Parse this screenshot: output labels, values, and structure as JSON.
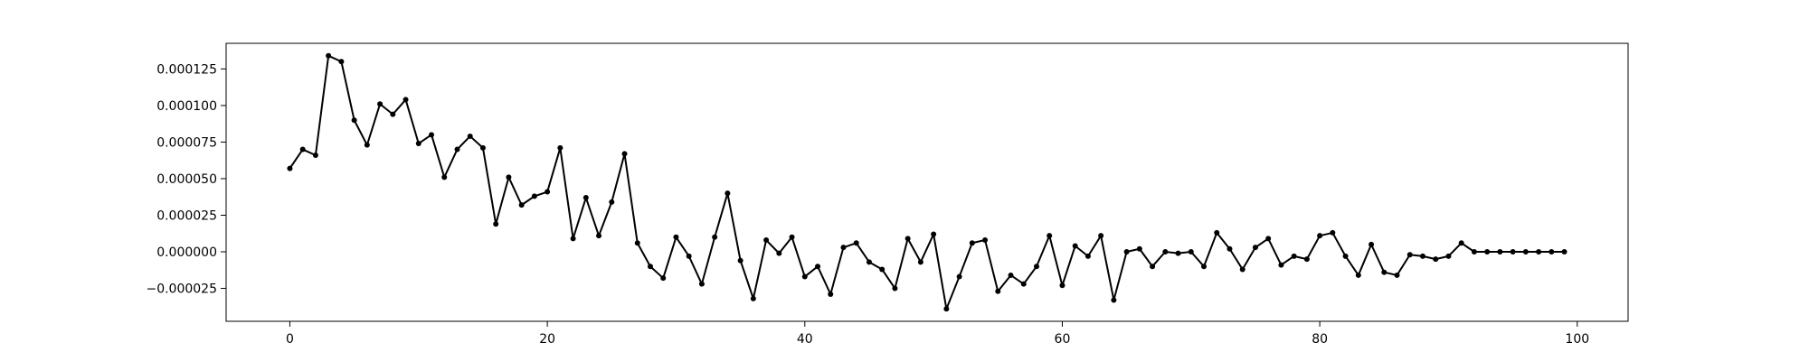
{
  "chart_data": {
    "type": "line",
    "title": "",
    "xlabel": "",
    "ylabel": "",
    "xlim": [
      -4.95,
      103.95
    ],
    "ylim": [
      -4.75e-05,
      0.0001425
    ],
    "xticks": [
      {
        "value": 0,
        "label": "0"
      },
      {
        "value": 20,
        "label": "20"
      },
      {
        "value": 40,
        "label": "40"
      },
      {
        "value": 60,
        "label": "60"
      },
      {
        "value": 80,
        "label": "80"
      },
      {
        "value": 100,
        "label": "100"
      }
    ],
    "yticks": [
      {
        "value": -2.5e-05,
        "label": "−0.000025"
      },
      {
        "value": 0,
        "label": "0.000000"
      },
      {
        "value": 2.5e-05,
        "label": "0.000025"
      },
      {
        "value": 5e-05,
        "label": "0.000050"
      },
      {
        "value": 7.5e-05,
        "label": "0.000075"
      },
      {
        "value": 0.0001,
        "label": "0.000100"
      },
      {
        "value": 0.000125,
        "label": "0.000125"
      }
    ],
    "grid": false,
    "color": "#000000",
    "marker": "dot",
    "x": [
      0,
      1,
      2,
      3,
      4,
      5,
      6,
      7,
      8,
      9,
      10,
      11,
      12,
      13,
      14,
      15,
      16,
      17,
      18,
      19,
      20,
      21,
      22,
      23,
      24,
      25,
      26,
      27,
      28,
      29,
      30,
      31,
      32,
      33,
      34,
      35,
      36,
      37,
      38,
      39,
      40,
      41,
      42,
      43,
      44,
      45,
      46,
      47,
      48,
      49,
      50,
      51,
      52,
      53,
      54,
      55,
      56,
      57,
      58,
      59,
      60,
      61,
      62,
      63,
      64,
      65,
      66,
      67,
      68,
      69,
      70,
      71,
      72,
      73,
      74,
      75,
      76,
      77,
      78,
      79,
      80,
      81,
      82,
      83,
      84,
      85,
      86,
      87,
      88,
      89,
      90,
      91,
      92,
      93,
      94,
      95,
      96,
      97,
      98,
      99
    ],
    "values": [
      5.7e-05,
      7e-05,
      6.6e-05,
      0.000134,
      0.00013,
      9e-05,
      7.3e-05,
      0.000101,
      9.4e-05,
      0.000104,
      7.4e-05,
      8e-05,
      5.1e-05,
      7e-05,
      7.9e-05,
      7.1e-05,
      1.9e-05,
      5.1e-05,
      3.2e-05,
      3.8e-05,
      4.1e-05,
      7.1e-05,
      9e-06,
      3.7e-05,
      1.1e-05,
      3.4e-05,
      6.7e-05,
      6e-06,
      -1e-05,
      -1.8e-05,
      1e-05,
      -3e-06,
      -2.2e-05,
      1e-05,
      4e-05,
      -6e-06,
      -3.2e-05,
      8e-06,
      -1e-06,
      1e-05,
      -1.7e-05,
      -1e-05,
      -2.9e-05,
      3e-06,
      6e-06,
      -7e-06,
      -1.2e-05,
      -2.5e-05,
      9e-06,
      -7e-06,
      1.2e-05,
      -3.9e-05,
      -1.7e-05,
      6e-06,
      8e-06,
      -2.7e-05,
      -1.6e-05,
      -2.2e-05,
      -1e-05,
      1.1e-05,
      -2.3e-05,
      4e-06,
      -3e-06,
      1.1e-05,
      -3.3e-05,
      0,
      2e-06,
      -1e-05,
      0,
      -1e-06,
      0,
      -1e-05,
      1.3e-05,
      2e-06,
      -1.2e-05,
      3e-06,
      9e-06,
      -9e-06,
      -3e-06,
      -5e-06,
      1.1e-05,
      1.3e-05,
      -3e-06,
      -1.6e-05,
      5e-06,
      -1.4e-05,
      -1.6e-05,
      -2e-06,
      -3e-06,
      -5e-06,
      -3e-06,
      6e-06,
      0,
      0,
      0,
      0,
      0,
      0,
      0,
      0
    ]
  }
}
